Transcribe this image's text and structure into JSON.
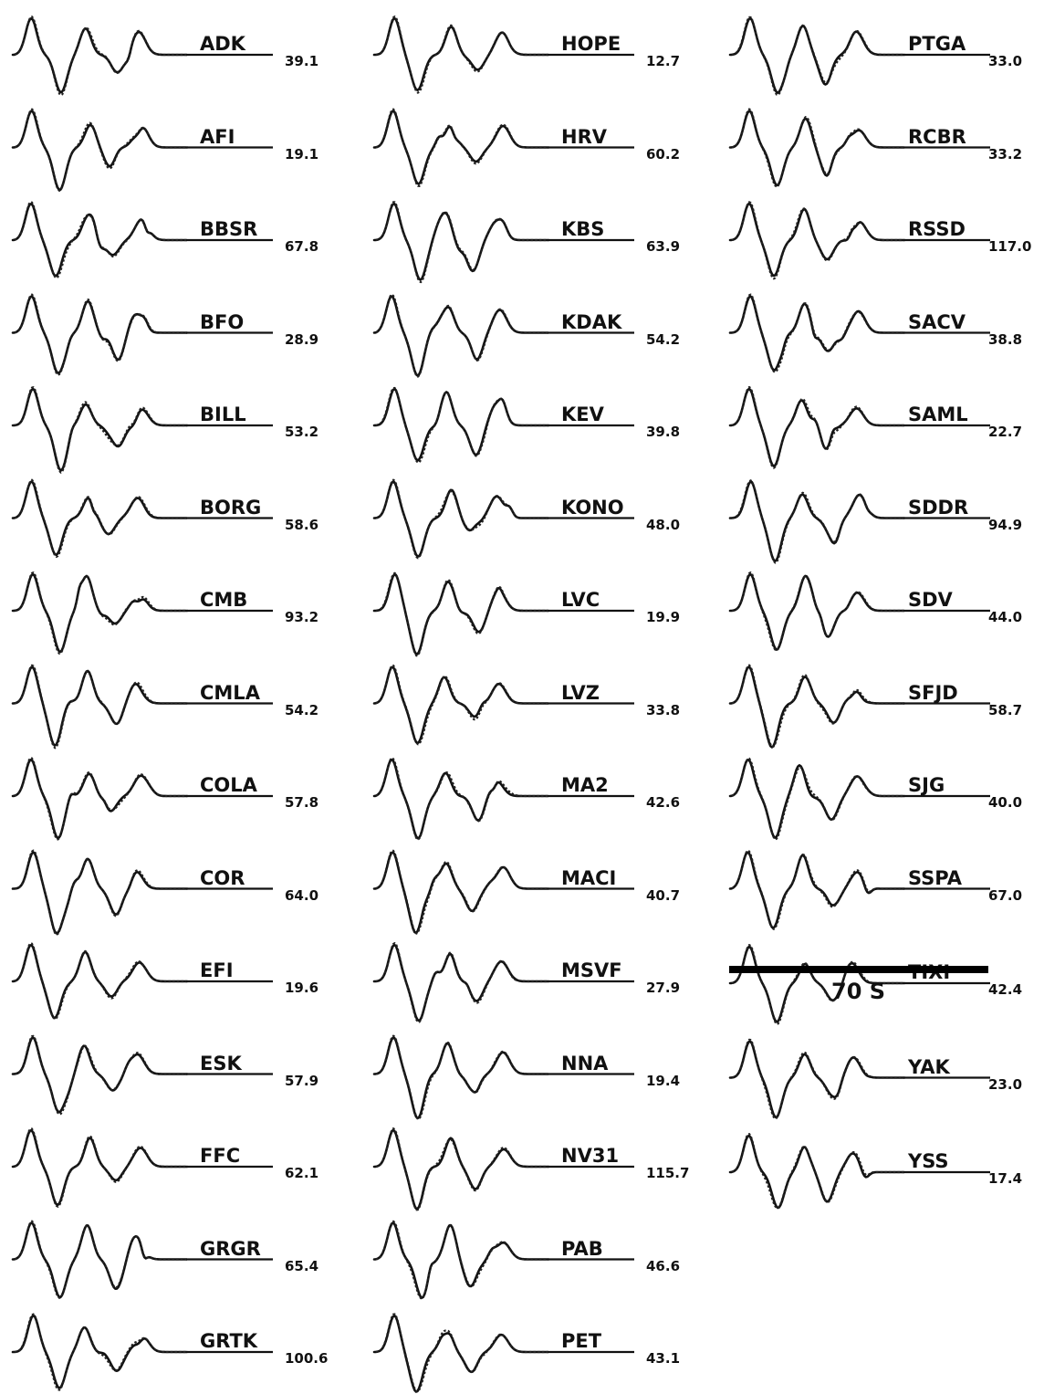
{
  "columns": [
    [
      {
        "station": "ADK",
        "value": "39.1"
      },
      {
        "station": "AFI",
        "value": "19.1"
      },
      {
        "station": "BBSR",
        "value": "67.8"
      },
      {
        "station": "BFO",
        "value": "28.9"
      },
      {
        "station": "BILL",
        "value": "53.2"
      },
      {
        "station": "BORG",
        "value": "58.6"
      },
      {
        "station": "CMB",
        "value": "93.2"
      },
      {
        "station": "CMLA",
        "value": "54.2"
      },
      {
        "station": "COLA",
        "value": "57.8"
      },
      {
        "station": "COR",
        "value": "64.0"
      },
      {
        "station": "EFI",
        "value": "19.6"
      },
      {
        "station": "ESK",
        "value": "57.9"
      },
      {
        "station": "FFC",
        "value": "62.1"
      },
      {
        "station": "GRGR",
        "value": "65.4"
      },
      {
        "station": "GRTK",
        "value": "100.6"
      }
    ],
    [
      {
        "station": "HOPE",
        "value": "12.7"
      },
      {
        "station": "HRV",
        "value": "60.2"
      },
      {
        "station": "KBS",
        "value": "63.9"
      },
      {
        "station": "KDAK",
        "value": "54.2"
      },
      {
        "station": "KEV",
        "value": "39.8"
      },
      {
        "station": "KONO",
        "value": "48.0"
      },
      {
        "station": "LVC",
        "value": "19.9"
      },
      {
        "station": "LVZ",
        "value": "33.8"
      },
      {
        "station": "MA2",
        "value": "42.6"
      },
      {
        "station": "MACI",
        "value": "40.7"
      },
      {
        "station": "MSVF",
        "value": "27.9"
      },
      {
        "station": "NNA",
        "value": "19.4"
      },
      {
        "station": "NV31",
        "value": "115.7"
      },
      {
        "station": "PAB",
        "value": "46.6"
      },
      {
        "station": "PET",
        "value": "43.1"
      }
    ],
    [
      {
        "station": "PTGA",
        "value": "33.0"
      },
      {
        "station": "RCBR",
        "value": "33.2"
      },
      {
        "station": "RSSD",
        "value": "117.0"
      },
      {
        "station": "SACV",
        "value": "38.8"
      },
      {
        "station": "SAML",
        "value": "22.7"
      },
      {
        "station": "SDDR",
        "value": "94.9"
      },
      {
        "station": "SDV",
        "value": "44.0"
      },
      {
        "station": "SFJD",
        "value": "58.7"
      },
      {
        "station": "SJG",
        "value": "40.0"
      },
      {
        "station": "SSPA",
        "value": "67.0"
      },
      {
        "station": "TIXI",
        "value": "42.4"
      },
      {
        "station": "YAK",
        "value": "23.0"
      },
      {
        "station": "YSS",
        "value": "17.4"
      }
    ]
  ],
  "scale_bar": {
    "label": "70 S"
  }
}
